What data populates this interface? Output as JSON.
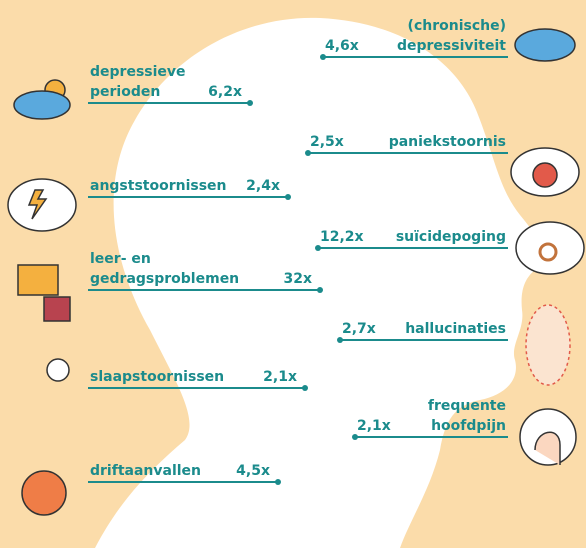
{
  "left": [
    {
      "label": [
        "depressieve",
        "perioden"
      ],
      "value": "6,2x"
    },
    {
      "label": [
        "angststoornissen"
      ],
      "value": "2,4x"
    },
    {
      "label": [
        "leer- en",
        "gedragsproblemen"
      ],
      "value": "32x"
    },
    {
      "label": [
        "slaapstoornissen"
      ],
      "value": "2,1x"
    },
    {
      "label": [
        "driftaanvallen"
      ],
      "value": "4,5x"
    }
  ],
  "right": [
    {
      "label": [
        "(chronische)",
        "depressiviteit"
      ],
      "value": "4,6x"
    },
    {
      "label": [
        "paniekstoornis"
      ],
      "value": "2,5x"
    },
    {
      "label": [
        "suïcidepoging"
      ],
      "value": "12,2x"
    },
    {
      "label": [
        "hallucinaties"
      ],
      "value": "2,7x"
    },
    {
      "label": [
        "frequente",
        "hoofdpijn"
      ],
      "value": "2,1x"
    }
  ]
}
